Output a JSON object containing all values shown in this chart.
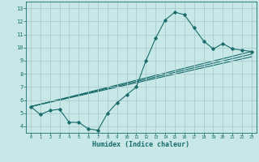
{
  "title": "",
  "xlabel": "Humidex (Indice chaleur)",
  "xlim": [
    -0.5,
    23.5
  ],
  "ylim": [
    3.5,
    13.5
  ],
  "xticks": [
    0,
    1,
    2,
    3,
    4,
    5,
    6,
    7,
    8,
    9,
    10,
    11,
    12,
    13,
    14,
    15,
    16,
    17,
    18,
    19,
    20,
    21,
    22,
    23
  ],
  "yticks": [
    4,
    5,
    6,
    7,
    8,
    9,
    10,
    11,
    12,
    13
  ],
  "bg_color": "#c8e8e8",
  "line_color": "#1a6b6b",
  "grid_color": "#aacccc",
  "main_line": {
    "x": [
      0,
      1,
      2,
      3,
      4,
      5,
      6,
      7,
      8,
      9,
      10,
      11,
      12,
      13,
      14,
      15,
      16,
      17,
      18,
      19,
      20,
      21,
      22,
      23
    ],
    "y": [
      5.5,
      4.9,
      5.2,
      5.3,
      4.3,
      4.3,
      3.8,
      3.7,
      5.0,
      5.8,
      6.4,
      7.0,
      9.0,
      10.7,
      12.1,
      12.7,
      12.5,
      11.5,
      10.5,
      9.9,
      10.3,
      9.9,
      9.8,
      9.7
    ]
  },
  "trend_lines": [
    {
      "x": [
        0,
        23
      ],
      "y": [
        5.5,
        9.7
      ]
    },
    {
      "x": [
        0,
        23
      ],
      "y": [
        5.5,
        9.5
      ]
    },
    {
      "x": [
        0,
        23
      ],
      "y": [
        5.5,
        9.3
      ]
    }
  ]
}
